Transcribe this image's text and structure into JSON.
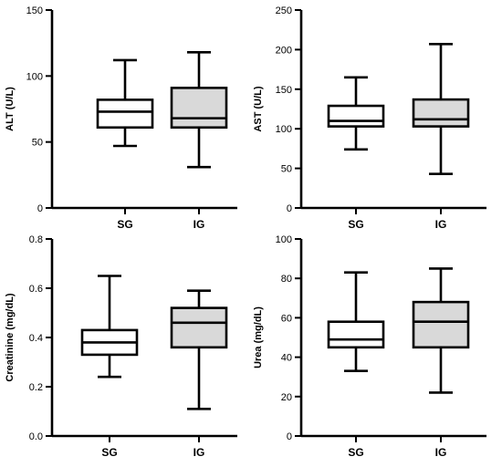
{
  "colors": {
    "sg_fill": "#ffffff",
    "ig_fill": "#d9d9d9",
    "stroke": "#000000"
  },
  "chart_data": [
    {
      "type": "box",
      "ylabel": "ALT (U/L)",
      "ylim": [
        0,
        150
      ],
      "yticks": [
        0,
        50,
        100,
        150
      ],
      "categories": [
        "SG",
        "IG"
      ],
      "boxes": [
        {
          "category": "SG",
          "min": 47,
          "q1": 61,
          "median": 73,
          "q3": 82,
          "max": 112
        },
        {
          "category": "IG",
          "min": 31,
          "q1": 61,
          "median": 68,
          "q3": 91,
          "max": 118
        }
      ]
    },
    {
      "type": "box",
      "ylabel": "AST (U/L)",
      "ylim": [
        0,
        250
      ],
      "yticks": [
        0,
        50,
        100,
        150,
        200,
        250
      ],
      "categories": [
        "SG",
        "IG"
      ],
      "boxes": [
        {
          "category": "SG",
          "min": 74,
          "q1": 103,
          "median": 110,
          "q3": 129,
          "max": 165
        },
        {
          "category": "IG",
          "min": 43,
          "q1": 103,
          "median": 112,
          "q3": 137,
          "max": 207
        }
      ]
    },
    {
      "type": "box",
      "ylabel": "Creatinine (mg/dL)",
      "ylim": [
        0,
        0.8
      ],
      "yticks": [
        0.0,
        0.2,
        0.4,
        0.6,
        0.8
      ],
      "tick_decimals": 1,
      "categories": [
        "SG",
        "IG"
      ],
      "boxes": [
        {
          "category": "SG",
          "min": 0.24,
          "q1": 0.33,
          "median": 0.38,
          "q3": 0.43,
          "max": 0.65
        },
        {
          "category": "IG",
          "min": 0.11,
          "q1": 0.36,
          "median": 0.46,
          "q3": 0.52,
          "max": 0.59
        }
      ]
    },
    {
      "type": "box",
      "ylabel": "Urea (mg/dL)",
      "ylim": [
        0,
        100
      ],
      "yticks": [
        0,
        20,
        40,
        60,
        80,
        100
      ],
      "categories": [
        "SG",
        "IG"
      ],
      "boxes": [
        {
          "category": "SG",
          "min": 33,
          "q1": 45,
          "median": 49,
          "q3": 58,
          "max": 83
        },
        {
          "category": "IG",
          "min": 22,
          "q1": 45,
          "median": 58,
          "q3": 68,
          "max": 85
        }
      ]
    }
  ]
}
